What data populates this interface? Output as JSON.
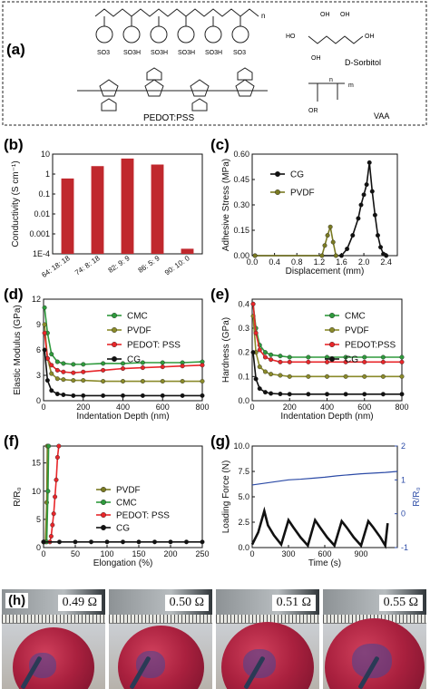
{
  "panel_labels": {
    "a": "(a)",
    "b": "(b)",
    "c": "(c)",
    "d": "(d)",
    "e": "(e)",
    "f": "(f)",
    "g": "(g)",
    "h": "(h)"
  },
  "scheme": {
    "pedot_label": "PEDOT:PSS",
    "sorbitol_label": "D-Sorbitol",
    "vaa_label": "VAA",
    "so3h": "SO3H",
    "so3": "SO3",
    "n": "n",
    "m": "m",
    "oh": "OH",
    "ho": "HO",
    "or": "OR"
  },
  "chart_data": [
    {
      "panel": "b",
      "type": "bar",
      "categories": [
        "64: 18: 18",
        "74: 8: 18",
        "82: 9: 9",
        "86: 5: 9",
        "90: 10: 0"
      ],
      "values": [
        0.6,
        2.5,
        6.0,
        3.0,
        0.00018
      ],
      "ylabel": "Conductivity (S cm⁻¹)",
      "yscale": "log",
      "ylim": [
        0.0001,
        10
      ],
      "yticks": [
        "1E-4",
        "0.001",
        "0.01",
        "0.1",
        "1",
        "10"
      ],
      "color": "#c0282d"
    },
    {
      "panel": "c",
      "type": "line",
      "xlabel": "Displacement (mm)",
      "ylabel": "Adhesive Stress (MPa)",
      "xlim": [
        0,
        2.6
      ],
      "ylim": [
        0,
        0.6
      ],
      "xticks": [
        "0.0",
        "0.4",
        "0.8",
        "1.2",
        "1.6",
        "2.0",
        "2.4"
      ],
      "yticks": [
        "0.00",
        "0.15",
        "0.30",
        "0.45",
        "0.60"
      ],
      "legend_position": "upper-left",
      "series": [
        {
          "name": "CG",
          "color": "#111111",
          "x": [
            0.05,
            1.6,
            1.7,
            1.8,
            1.9,
            1.95,
            2.0,
            2.05,
            2.1,
            2.15,
            2.2,
            2.25,
            2.3,
            2.35,
            2.4
          ],
          "y": [
            0.0,
            0.0,
            0.04,
            0.12,
            0.22,
            0.3,
            0.36,
            0.42,
            0.55,
            0.38,
            0.24,
            0.12,
            0.05,
            0.01,
            0.0
          ]
        },
        {
          "name": "PVDF",
          "color": "#7a7a22",
          "x": [
            0.05,
            1.25,
            1.3,
            1.35,
            1.4,
            1.45,
            1.5
          ],
          "y": [
            0.0,
            0.0,
            0.06,
            0.12,
            0.17,
            0.08,
            0.0
          ]
        }
      ]
    },
    {
      "panel": "d",
      "type": "line",
      "xlabel": "Indentation Depth (nm)",
      "ylabel": "Elastic Modulus (GPa)",
      "xlim": [
        0,
        800
      ],
      "ylim": [
        0,
        12
      ],
      "xticks": [
        "0",
        "200",
        "400",
        "600",
        "800"
      ],
      "yticks": [
        "0",
        "3",
        "6",
        "9",
        "12"
      ],
      "legend_position": "upper-right",
      "series": [
        {
          "name": "CMC",
          "color": "#2e9a3c",
          "x": [
            5,
            20,
            40,
            70,
            100,
            150,
            200,
            300,
            400,
            500,
            600,
            700,
            800
          ],
          "y": [
            11,
            8,
            5.5,
            4.6,
            4.4,
            4.3,
            4.3,
            4.4,
            4.4,
            4.5,
            4.5,
            4.5,
            4.6
          ]
        },
        {
          "name": "PVDF",
          "color": "#8a8a2a",
          "x": [
            5,
            20,
            40,
            70,
            100,
            150,
            200,
            300,
            400,
            500,
            600,
            700,
            800
          ],
          "y": [
            9,
            5,
            3.2,
            2.6,
            2.5,
            2.4,
            2.4,
            2.3,
            2.3,
            2.3,
            2.3,
            2.3,
            2.3
          ]
        },
        {
          "name": "PEDOT: PSS",
          "color": "#e8262a",
          "x": [
            5,
            20,
            40,
            70,
            100,
            150,
            200,
            300,
            400,
            500,
            600,
            700,
            800
          ],
          "y": [
            8,
            5,
            4.2,
            3.6,
            3.4,
            3.3,
            3.4,
            3.6,
            3.8,
            3.9,
            4.0,
            4.1,
            4.2
          ]
        },
        {
          "name": "CG",
          "color": "#111111",
          "x": [
            5,
            20,
            40,
            70,
            100,
            150,
            200,
            300,
            400,
            500,
            600,
            700,
            800
          ],
          "y": [
            6,
            2.4,
            1.2,
            0.8,
            0.7,
            0.6,
            0.6,
            0.6,
            0.6,
            0.6,
            0.6,
            0.6,
            0.6
          ]
        }
      ]
    },
    {
      "panel": "e",
      "type": "line",
      "xlabel": "Indentation Depth (nm)",
      "ylabel": "Hardness (GPa)",
      "xlim": [
        0,
        800
      ],
      "ylim": [
        0,
        0.42
      ],
      "xticks": [
        "0",
        "200",
        "400",
        "600",
        "800"
      ],
      "yticks": [
        "0.0",
        "0.1",
        "0.2",
        "0.3",
        "0.4"
      ],
      "legend_position": "upper-right",
      "series": [
        {
          "name": "CMC",
          "color": "#2e9a3c",
          "x": [
            5,
            20,
            40,
            70,
            100,
            150,
            200,
            300,
            400,
            500,
            600,
            700,
            800
          ],
          "y": [
            0.4,
            0.3,
            0.23,
            0.2,
            0.19,
            0.185,
            0.18,
            0.18,
            0.18,
            0.18,
            0.18,
            0.18,
            0.18
          ]
        },
        {
          "name": "PVDF",
          "color": "#8a8a2a",
          "x": [
            5,
            20,
            40,
            70,
            100,
            150,
            200,
            300,
            400,
            500,
            600,
            700,
            800
          ],
          "y": [
            0.35,
            0.2,
            0.14,
            0.12,
            0.11,
            0.105,
            0.1,
            0.1,
            0.1,
            0.1,
            0.1,
            0.1,
            0.1
          ]
        },
        {
          "name": "PEDOT:PSS",
          "color": "#e8262a",
          "x": [
            5,
            20,
            40,
            70,
            100,
            150,
            200,
            300,
            400,
            500,
            600,
            700,
            800
          ],
          "y": [
            0.4,
            0.28,
            0.21,
            0.18,
            0.17,
            0.16,
            0.16,
            0.16,
            0.16,
            0.16,
            0.16,
            0.16,
            0.16
          ]
        },
        {
          "name": "CG",
          "color": "#111111",
          "x": [
            5,
            20,
            40,
            70,
            100,
            150,
            200,
            300,
            400,
            500,
            600,
            700,
            800
          ],
          "y": [
            0.2,
            0.09,
            0.05,
            0.035,
            0.03,
            0.028,
            0.027,
            0.027,
            0.027,
            0.027,
            0.027,
            0.027,
            0.027
          ]
        }
      ]
    },
    {
      "panel": "f",
      "type": "line",
      "xlabel": "Elongation (%)",
      "ylabel": "R/R₀",
      "xlim": [
        0,
        250
      ],
      "ylim": [
        0,
        18
      ],
      "xticks": [
        "0",
        "50",
        "100",
        "150",
        "200",
        "250"
      ],
      "yticks": [
        "0",
        "5",
        "10",
        "15"
      ],
      "legend_position": "right",
      "series": [
        {
          "name": "PVDF",
          "color": "#7a7a22",
          "x": [
            0,
            3,
            5,
            6
          ],
          "y": [
            1,
            1,
            8,
            18
          ]
        },
        {
          "name": "CMC",
          "color": "#2e9a3c",
          "x": [
            0,
            5,
            7,
            8
          ],
          "y": [
            1,
            1,
            10,
            18
          ]
        },
        {
          "name": "PEDOT: PSS",
          "color": "#e8262a",
          "x": [
            0,
            10,
            12,
            14,
            16,
            18,
            20,
            22,
            24
          ],
          "y": [
            1,
            1,
            2,
            4,
            6,
            9,
            12,
            16,
            18
          ]
        },
        {
          "name": "CG",
          "color": "#111111",
          "x": [
            0,
            25,
            50,
            75,
            100,
            125,
            150,
            175,
            200,
            225,
            250
          ],
          "y": [
            1,
            1,
            1,
            1,
            1,
            1,
            1,
            1,
            1,
            1,
            1
          ]
        }
      ]
    },
    {
      "panel": "g",
      "type": "line",
      "xlabel": "Time (s)",
      "ylabel": "Loading Force (N)",
      "y2label": "R/R₀",
      "xlim": [
        0,
        1200
      ],
      "ylim": [
        0,
        10
      ],
      "y2lim": [
        -1,
        2
      ],
      "xticks": [
        "0",
        "300",
        "600",
        "900"
      ],
      "yticks": [
        "0.0",
        "2.5",
        "5.0",
        "7.5",
        "10.0"
      ],
      "y2ticks": [
        "-1",
        "0",
        "1",
        "2"
      ],
      "series": [
        {
          "name": "Loading Force",
          "axis": "left",
          "color": "#111111",
          "x": [
            0,
            50,
            100,
            130,
            180,
            240,
            300,
            340,
            400,
            460,
            520,
            560,
            620,
            680,
            740,
            780,
            840,
            900,
            960,
            1000,
            1060,
            1100,
            1120
          ],
          "y": [
            0.3,
            1.5,
            3.6,
            2.2,
            1.2,
            0.3,
            2.7,
            2.0,
            1.0,
            0.2,
            2.7,
            2.0,
            1.0,
            0.2,
            2.6,
            2.0,
            1.0,
            0.2,
            2.6,
            2.0,
            1.0,
            0.2,
            2.4
          ]
        },
        {
          "name": "R/R₀",
          "axis": "right",
          "color": "#2b4aa6",
          "x": [
            0,
            100,
            200,
            300,
            400,
            500,
            600,
            700,
            800,
            900,
            1000,
            1100,
            1200
          ],
          "y": [
            0.85,
            0.9,
            0.95,
            1.0,
            1.02,
            1.05,
            1.08,
            1.12,
            1.15,
            1.18,
            1.2,
            1.22,
            1.25
          ]
        }
      ]
    }
  ],
  "photos": [
    {
      "resistance": "0.49 Ω"
    },
    {
      "resistance": "0.50 Ω"
    },
    {
      "resistance": "0.51 Ω"
    },
    {
      "resistance": "0.55 Ω"
    }
  ]
}
